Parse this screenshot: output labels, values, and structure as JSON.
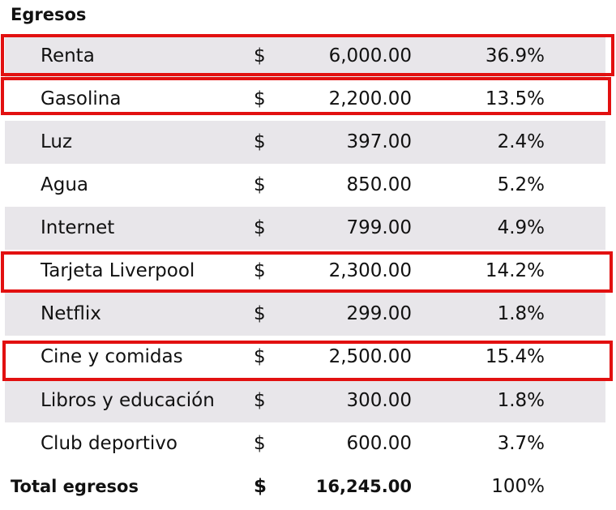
{
  "section_title": "Egresos",
  "rows": [
    {
      "label": "Renta",
      "currency": "$",
      "amount": "6,000.00",
      "percent": "36.9%",
      "highlighted": true
    },
    {
      "label": "Gasolina",
      "currency": "$",
      "amount": "2,200.00",
      "percent": "13.5%",
      "highlighted": true
    },
    {
      "label": "Luz",
      "currency": "$",
      "amount": "397.00",
      "percent": "2.4%",
      "highlighted": false
    },
    {
      "label": "Agua",
      "currency": "$",
      "amount": "850.00",
      "percent": "5.2%",
      "highlighted": false
    },
    {
      "label": "Internet",
      "currency": "$",
      "amount": "799.00",
      "percent": "4.9%",
      "highlighted": false
    },
    {
      "label": "Tarjeta Liverpool",
      "currency": "$",
      "amount": "2,300.00",
      "percent": "14.2%",
      "highlighted": true
    },
    {
      "label": "Netflix",
      "currency": "$",
      "amount": "299.00",
      "percent": "1.8%",
      "highlighted": false
    },
    {
      "label": "Cine y comidas",
      "currency": "$",
      "amount": "2,500.00",
      "percent": "15.4%",
      "highlighted": true
    },
    {
      "label": "Libros y educación",
      "currency": "$",
      "amount": "300.00",
      "percent": "1.8%",
      "highlighted": false
    },
    {
      "label": "Club deportivo",
      "currency": "$",
      "amount": "600.00",
      "percent": "3.7%",
      "highlighted": false
    }
  ],
  "total": {
    "label": "Total egresos",
    "currency": "$",
    "amount": "16,245.00",
    "percent": "100%"
  },
  "colors": {
    "row_shade": "#e8e6ea",
    "highlight_border": "#e21010",
    "text": "#111111"
  }
}
